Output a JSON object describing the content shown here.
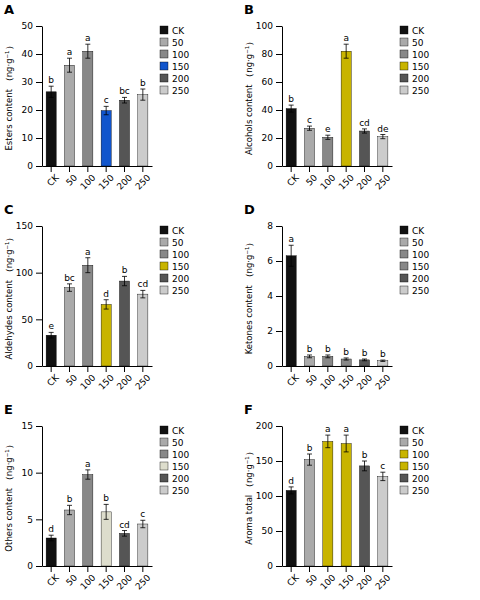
{
  "chart_data": [
    {
      "type": "bar",
      "title": "A",
      "y_label": "Esters content （ng·g⁻¹）",
      "categories": [
        "CK",
        "50",
        "100",
        "150",
        "200",
        "250"
      ],
      "values": [
        26.5,
        36.0,
        41.0,
        19.8,
        23.5,
        25.5
      ],
      "errors": [
        2.0,
        2.5,
        2.5,
        1.5,
        1.0,
        2.0
      ],
      "annotations": [
        "b",
        "a",
        "a",
        "c",
        "bc",
        "b"
      ],
      "colors": [
        "#111111",
        "#aaaaaa",
        "#888888",
        "#1155cc",
        "#555555",
        "#cccccc"
      ],
      "ylim": [
        0,
        50
      ],
      "yticks": [
        0,
        10,
        20,
        30,
        40,
        50
      ],
      "grid": false,
      "legend": "right"
    },
    {
      "type": "bar",
      "title": "B",
      "y_label": "Alcohols content （ng·g⁻¹）",
      "categories": [
        "CK",
        "50",
        "100",
        "150",
        "200",
        "250"
      ],
      "values": [
        41.0,
        27.0,
        20.5,
        82.0,
        25.0,
        21.0
      ],
      "errors": [
        2.5,
        1.5,
        1.5,
        5.0,
        1.5,
        1.5
      ],
      "annotations": [
        "b",
        "c",
        "e",
        "a",
        "cd",
        "de"
      ],
      "colors": [
        "#111111",
        "#aaaaaa",
        "#888888",
        "#c8b400",
        "#555555",
        "#cccccc"
      ],
      "ylim": [
        0,
        100
      ],
      "yticks": [
        0,
        20,
        40,
        60,
        80,
        100
      ],
      "grid": false,
      "legend": "right"
    },
    {
      "type": "bar",
      "title": "C",
      "y_label": "Aldehydes content （ng·g⁻¹）",
      "categories": [
        "CK",
        "50",
        "100",
        "150",
        "200",
        "250"
      ],
      "values": [
        33.0,
        84.0,
        108.0,
        66.0,
        91.0,
        77.0
      ],
      "errors": [
        3.0,
        4.0,
        8.0,
        5.0,
        5.0,
        4.0
      ],
      "annotations": [
        "e",
        "bc",
        "a",
        "d",
        "b",
        "cd"
      ],
      "colors": [
        "#111111",
        "#aaaaaa",
        "#888888",
        "#c8b400",
        "#555555",
        "#cccccc"
      ],
      "ylim": [
        0,
        150
      ],
      "yticks": [
        0,
        50,
        100,
        150
      ],
      "grid": false,
      "legend": "right"
    },
    {
      "type": "bar",
      "title": "D",
      "y_label": "Ketones content （ng·g⁻¹）",
      "categories": [
        "CK",
        "50",
        "100",
        "150",
        "200",
        "250"
      ],
      "values": [
        6.3,
        0.55,
        0.55,
        0.4,
        0.35,
        0.3
      ],
      "errors": [
        0.6,
        0.08,
        0.08,
        0.06,
        0.05,
        0.04
      ],
      "annotations": [
        "a",
        "b",
        "b",
        "b",
        "b",
        "b"
      ],
      "colors": [
        "#111111",
        "#aaaaaa",
        "#888888",
        "#888888",
        "#555555",
        "#cccccc"
      ],
      "ylim": [
        0,
        8
      ],
      "yticks": [
        0,
        2,
        4,
        6,
        8
      ],
      "grid": false,
      "legend": "right"
    },
    {
      "type": "bar",
      "title": "E",
      "y_label": "Others content （ng·g⁻¹）",
      "categories": [
        "CK",
        "50",
        "100",
        "150",
        "200",
        "250"
      ],
      "values": [
        3.0,
        6.0,
        9.8,
        5.8,
        3.5,
        4.5
      ],
      "errors": [
        0.3,
        0.5,
        0.5,
        0.8,
        0.3,
        0.4
      ],
      "annotations": [
        "d",
        "b",
        "a",
        "b",
        "cd",
        "c"
      ],
      "colors": [
        "#111111",
        "#aaaaaa",
        "#888888",
        "#ddddcc",
        "#555555",
        "#cccccc"
      ],
      "ylim": [
        0,
        15
      ],
      "yticks": [
        0,
        5,
        10,
        15
      ],
      "grid": false,
      "legend": "right"
    },
    {
      "type": "bar",
      "title": "F",
      "y_label": "Aroma total （ng·g⁻¹）",
      "categories": [
        "CK",
        "50",
        "100",
        "150",
        "200",
        "250"
      ],
      "values": [
        108.0,
        152.0,
        178.0,
        175.0,
        143.0,
        128.0
      ],
      "errors": [
        5.0,
        8.0,
        9.0,
        12.0,
        7.0,
        6.0
      ],
      "annotations": [
        "d",
        "b",
        "a",
        "a",
        "b",
        "c"
      ],
      "colors": [
        "#111111",
        "#aaaaaa",
        "#c8b400",
        "#c8b400",
        "#555555",
        "#cccccc"
      ],
      "ylim": [
        0,
        200
      ],
      "yticks": [
        0,
        50,
        100,
        150,
        200
      ],
      "grid": false,
      "legend": "right"
    }
  ]
}
